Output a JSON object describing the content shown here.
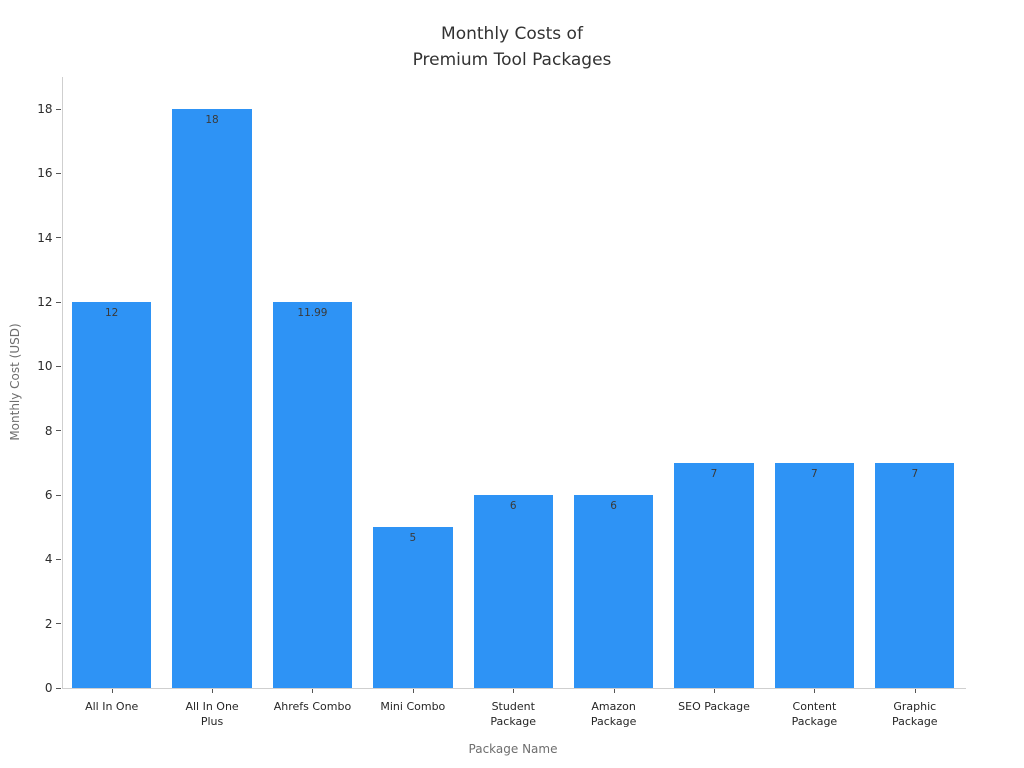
{
  "chart_data": {
    "type": "bar",
    "title": "Monthly Costs of\nPremium Tool Packages",
    "xlabel": "Package Name",
    "ylabel": "Monthly Cost (USD)",
    "categories": [
      "All In One",
      "All In One\nPlus",
      "Ahrefs Combo",
      "Mini Combo",
      "Student\nPackage",
      "Amazon\nPackage",
      "SEO Package",
      "Content\nPackage",
      "Graphic\nPackage"
    ],
    "values": [
      12,
      18,
      11.99,
      5,
      6,
      6,
      7,
      7,
      7
    ],
    "value_labels": [
      "12",
      "18",
      "11.99",
      "5",
      "6",
      "6",
      "7",
      "7",
      "7"
    ],
    "yticks": [
      0,
      2,
      4,
      6,
      8,
      10,
      12,
      14,
      16,
      18
    ],
    "ylim": [
      0,
      19
    ],
    "grid": false,
    "legend_position": "none",
    "bar_color": "#2e93f5"
  }
}
